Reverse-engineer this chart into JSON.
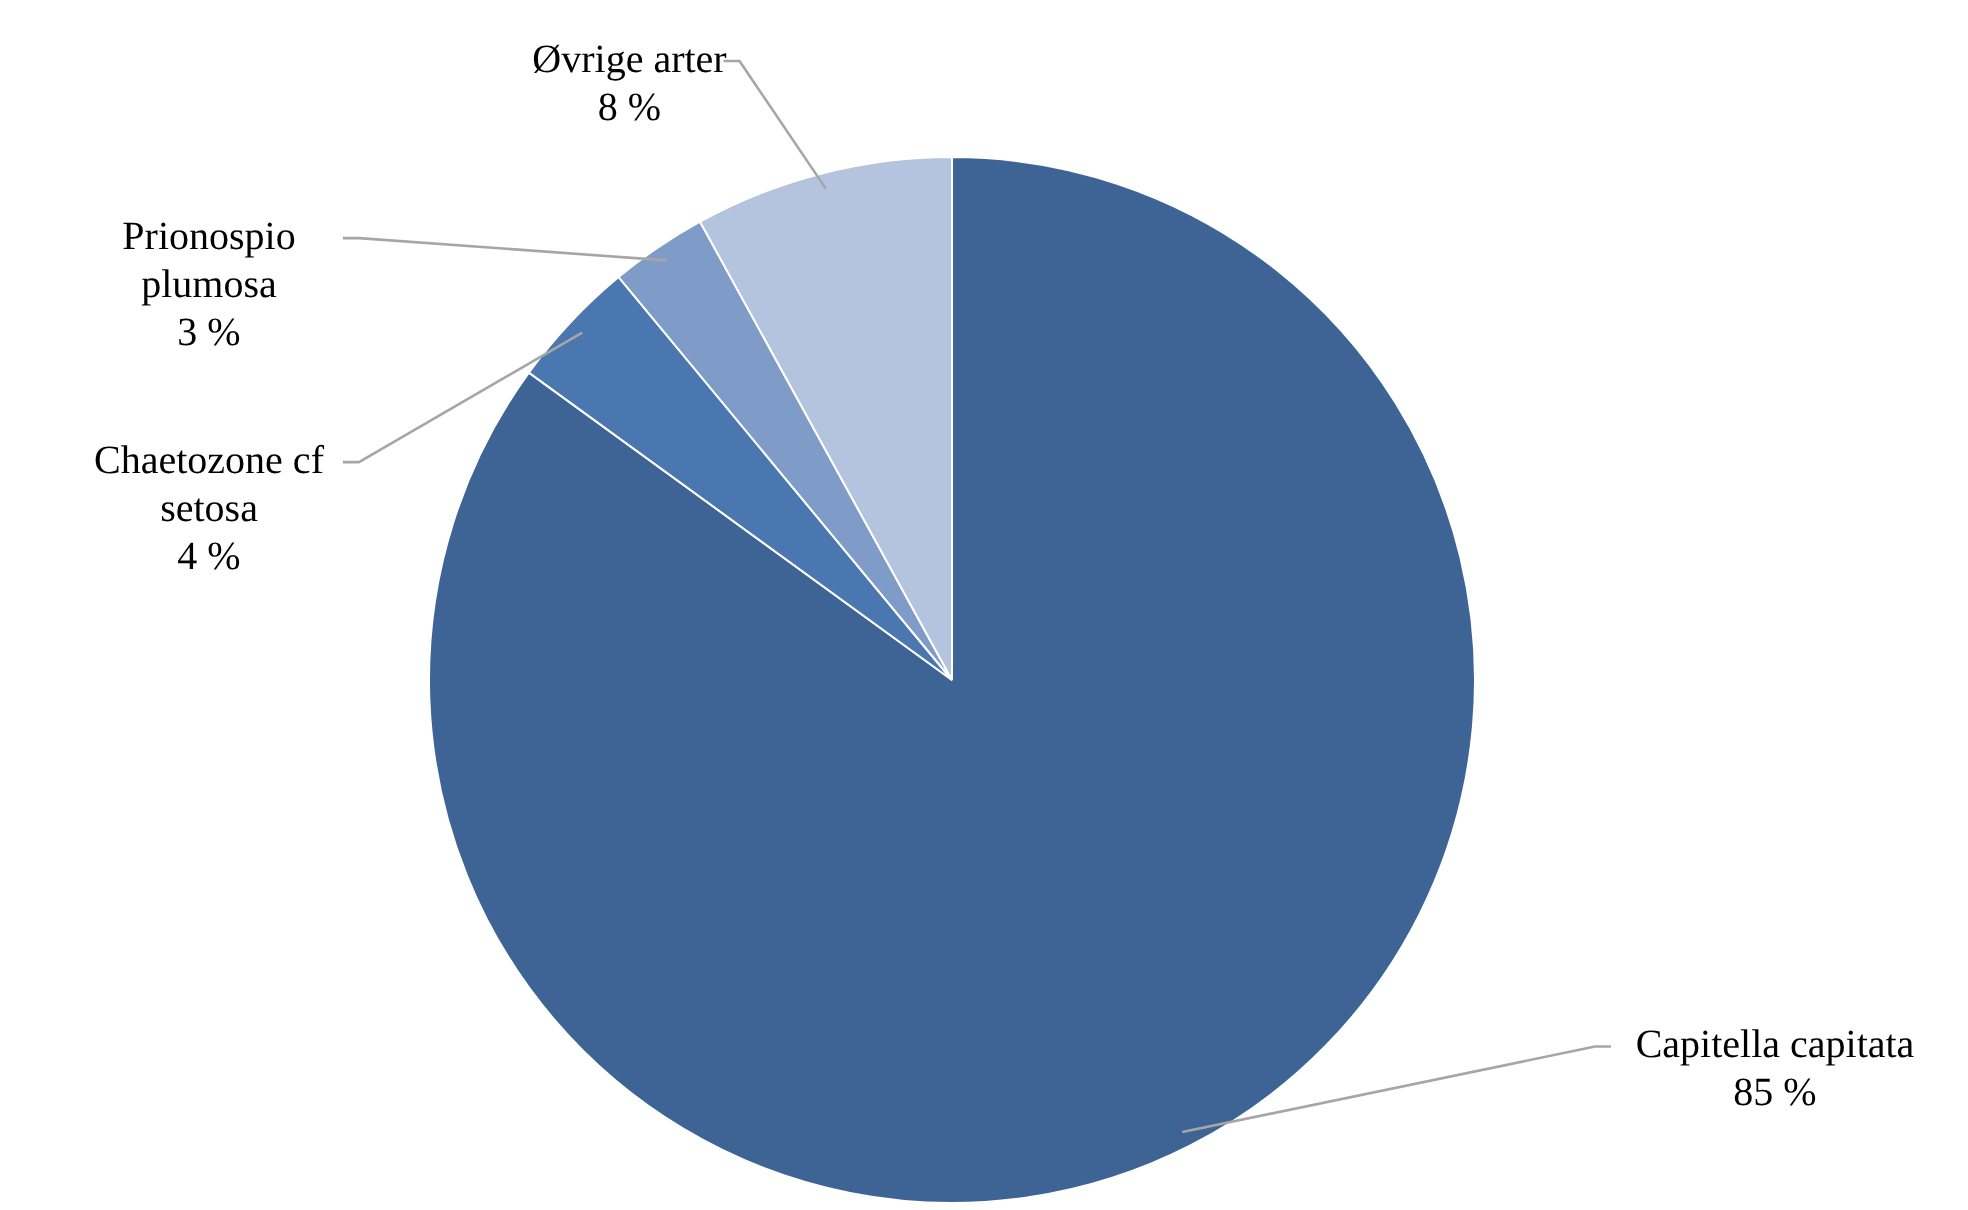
{
  "chart_data": {
    "type": "pie",
    "categories": [
      "Capitella capitata",
      "Chaetozone cf setosa",
      "Prionospio plumosa",
      "Øvrige arter"
    ],
    "values": [
      85,
      4,
      3,
      8
    ],
    "value_labels": [
      "85 %",
      "4 %",
      "3 %",
      "8 %"
    ],
    "colors": [
      "#3e6496",
      "#4a77b0",
      "#7f9cc8",
      "#b4c3de"
    ],
    "legend": false
  }
}
